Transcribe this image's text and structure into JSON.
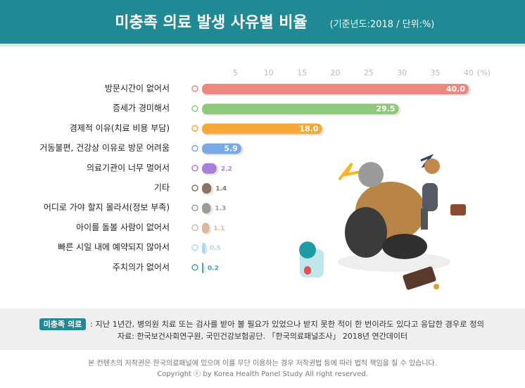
{
  "chart_data": {
    "type": "hbar",
    "title": "미충족 의료 발생 사유별 비율",
    "subtitle": "(기준년도:2018 / 단위:%)",
    "xlabel": "(%)",
    "categories": [
      "방문시간이 없어서",
      "증세가 경미해서",
      "경제적 이유(치료 비용 부담)",
      "거동불편, 건강상 이유로 방문 어려움",
      "의료기관이 너무 멀어서",
      "기타",
      "어디로 가야 할지 몰라서(정보 부족)",
      "아이를 돌볼 사람이 없어서",
      "빠른 시일 내에 예약되지 않아서",
      "주치의가 없어서"
    ],
    "values": [
      40.0,
      29.5,
      18.0,
      5.9,
      2.2,
      1.4,
      1.3,
      1.1,
      0.5,
      0.2
    ],
    "value_labels": [
      "40.0",
      "29.5",
      "18.0",
      "5.9",
      "2.2",
      "1.4",
      "1.3",
      "1.1",
      "0.5",
      "0.2"
    ],
    "colors": [
      "#f0877f",
      "#8ec97b",
      "#f6a93b",
      "#7aa9e6",
      "#a87fd9",
      "#8a7464",
      "#9b9b9b",
      "#d9b89b",
      "#a9d9ec",
      "#3ea5b0"
    ],
    "xlim": [
      0,
      40
    ],
    "xticks": [
      5,
      10,
      15,
      20,
      25,
      30,
      35,
      40
    ],
    "grid": false
  },
  "footer": {
    "badge": "미충족 의료",
    "definition": ": 지난 1년간, 병의원 치료 또는 검사를 받아 볼 필요가 있었으나 받지 못한 적이 한 번이라도 있다고 응답한  경우로 정의",
    "source": "자료: 한국보건사회연구원, 국민건강보험공단. 「한국의료패널조사」 2018년 연간데이터",
    "notice": "본 컨텐츠의 저작권은 한국의료패널에 있으며 이를 무단 이용하는 경우 저작권법 등에 따라 법적 책임을 질 수 있습니다.",
    "copyright": "Copyright ⓒ by Korea Health Panel Study All right reserved."
  }
}
